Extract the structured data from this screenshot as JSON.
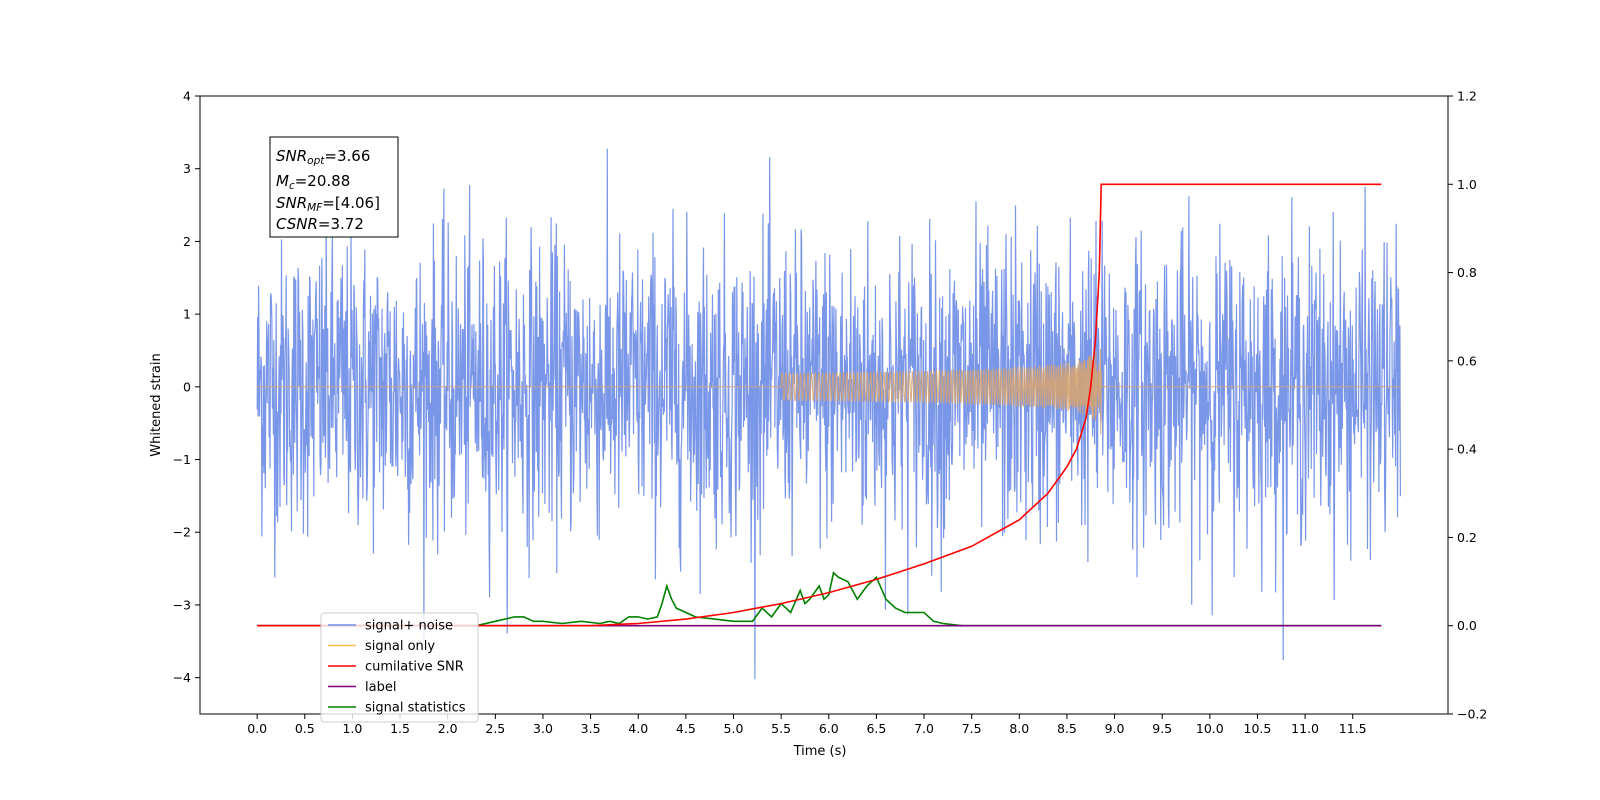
{
  "chart_data": {
    "type": "line",
    "xlabel": "Time (s)",
    "ylabel": "Whitened strain",
    "xlim": [
      -0.6,
      12.5
    ],
    "ylim": [
      -4.5,
      4.0
    ],
    "y2lim": [
      -0.2,
      1.2
    ],
    "x_ticks": [
      "0.0",
      "0.5",
      "1.0",
      "1.5",
      "2.0",
      "2.5",
      "3.0",
      "3.5",
      "4.0",
      "4.5",
      "5.0",
      "5.5",
      "6.0",
      "6.5",
      "7.0",
      "7.5",
      "8.0",
      "8.5",
      "9.0",
      "9.5",
      "10.0",
      "10.5",
      "11.0",
      "11.5"
    ],
    "y_ticks": [
      "4",
      "3",
      "2",
      "1",
      "0",
      "−1",
      "−2",
      "−3",
      "−4"
    ],
    "y2_ticks": [
      "1.2",
      "1.0",
      "0.8",
      "0.6",
      "0.4",
      "0.2",
      "0.0",
      "−0.2"
    ],
    "annotation": {
      "snr_opt": {
        "main": "SNR",
        "sub": "opt",
        "value": "=3.66"
      },
      "mc": {
        "main": "M",
        "sub": "c",
        "value": "=20.88"
      },
      "snr_mf": {
        "main": "SNR",
        "sub": "MF",
        "value": "=[4.06]"
      },
      "csnr": {
        "main": "CSNR",
        "value": "=3.72"
      }
    },
    "legend": {
      "placement": "lower-left",
      "entries": [
        {
          "label": "signal+ noise",
          "color": "#6f8de6"
        },
        {
          "label": "signal only",
          "color": "#ffc04d"
        },
        {
          "label": "cumilative SNR",
          "color": "#ff0000"
        },
        {
          "label": "label",
          "color": "#7b007b"
        },
        {
          "label": "signal statistics",
          "color": "#008000"
        }
      ]
    },
    "series": [
      {
        "name": "signal+ noise",
        "axis": "left",
        "color": "#6f8de6",
        "x_range": [
          0.0,
          12.0
        ],
        "typical_amplitude": 1.0,
        "max": 3.62,
        "min": -4.1
      },
      {
        "name": "signal only",
        "axis": "left",
        "color": "#d4a373",
        "chirp_start": 5.5,
        "merger_time": 8.86,
        "peak_amplitude": 0.7
      },
      {
        "name": "cumilative SNR",
        "axis": "right",
        "color": "#ff0000",
        "x": [
          0.0,
          3.5,
          4.0,
          4.5,
          5.0,
          5.5,
          6.0,
          6.5,
          7.0,
          7.5,
          8.0,
          8.3,
          8.5,
          8.6,
          8.7,
          8.75,
          8.8,
          8.84,
          8.86,
          9.0,
          11.8
        ],
        "y": [
          0.0,
          0.0,
          0.005,
          0.015,
          0.03,
          0.05,
          0.075,
          0.105,
          0.14,
          0.18,
          0.24,
          0.3,
          0.36,
          0.4,
          0.47,
          0.54,
          0.65,
          0.8,
          1.0,
          1.0,
          1.0
        ]
      },
      {
        "name": "label",
        "axis": "right",
        "color": "#7b007b",
        "x": [
          0.0,
          11.8
        ],
        "y": [
          0.0,
          0.0
        ]
      },
      {
        "name": "signal statistics",
        "axis": "right",
        "color": "#008000",
        "x": [
          0.0,
          2.3,
          2.5,
          2.7,
          2.8,
          2.9,
          3.0,
          3.2,
          3.4,
          3.6,
          3.7,
          3.8,
          3.9,
          4.0,
          4.1,
          4.2,
          4.25,
          4.3,
          4.35,
          4.4,
          4.5,
          4.6,
          4.8,
          5.0,
          5.2,
          5.3,
          5.4,
          5.5,
          5.6,
          5.7,
          5.75,
          5.8,
          5.9,
          5.95,
          6.0,
          6.05,
          6.1,
          6.2,
          6.3,
          6.4,
          6.5,
          6.6,
          6.7,
          6.8,
          7.0,
          7.1,
          7.2,
          7.4,
          7.6,
          8.0,
          8.5,
          9.0,
          9.5,
          10.0,
          11.8
        ],
        "y": [
          0.0,
          0.0,
          0.01,
          0.02,
          0.02,
          0.01,
          0.01,
          0.005,
          0.01,
          0.005,
          0.01,
          0.005,
          0.02,
          0.02,
          0.015,
          0.02,
          0.05,
          0.09,
          0.06,
          0.04,
          0.03,
          0.02,
          0.015,
          0.01,
          0.01,
          0.04,
          0.02,
          0.05,
          0.03,
          0.08,
          0.05,
          0.06,
          0.09,
          0.06,
          0.07,
          0.12,
          0.11,
          0.1,
          0.06,
          0.09,
          0.11,
          0.06,
          0.04,
          0.03,
          0.03,
          0.01,
          0.005,
          0.0,
          0.0,
          0.0,
          0.0,
          0.0,
          0.0,
          0.0,
          0.0
        ]
      }
    ]
  }
}
